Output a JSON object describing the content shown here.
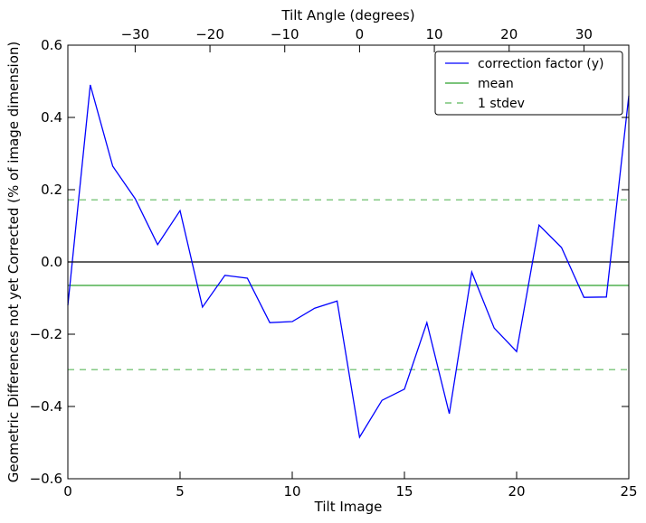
{
  "chart_data": {
    "type": "line",
    "xlabel": "Tilt Image",
    "ylabel": "Geometric Differences not yet Corrected (% of image dimension)",
    "top_xlabel": "Tilt Angle (degrees)",
    "xlim": [
      0,
      25
    ],
    "ylim": [
      -0.6,
      0.6
    ],
    "x_ticks": [
      0,
      5,
      10,
      15,
      20,
      25
    ],
    "y_ticks": [
      -0.6,
      -0.4,
      -0.2,
      0.0,
      0.2,
      0.4,
      0.6
    ],
    "y_tick_labels": [
      "−0.6",
      "−0.4",
      "−0.2",
      "0.0",
      "0.2",
      "0.4",
      "0.6"
    ],
    "top_ticks": [
      -30,
      -20,
      -10,
      0,
      10,
      20,
      30
    ],
    "top_tick_labels": [
      "−30",
      "−20",
      "−10",
      "0",
      "10",
      "20",
      "30"
    ],
    "top_axis_lim": [
      -39,
      36
    ],
    "grid": false,
    "legend_position": "top-right",
    "series": [
      {
        "name": "correction factor (y)",
        "color": "#0000ff",
        "style": "solid",
        "x": [
          0,
          1,
          2,
          3,
          4,
          5,
          6,
          7,
          8,
          9,
          10,
          11,
          12,
          13,
          14,
          15,
          16,
          17,
          18,
          19,
          20,
          21,
          22,
          23,
          24,
          25
        ],
        "values": [
          -0.12,
          0.49,
          0.265,
          0.175,
          0.048,
          0.142,
          -0.125,
          -0.037,
          -0.045,
          -0.168,
          -0.165,
          -0.128,
          -0.108,
          -0.485,
          -0.383,
          -0.352,
          -0.168,
          -0.42,
          -0.028,
          -0.183,
          -0.248,
          0.102,
          0.04,
          -0.098,
          -0.097,
          0.46
        ]
      },
      {
        "name": "mean",
        "color": "#2ca02c",
        "style": "solid",
        "constant": -0.065
      },
      {
        "name": "1 stdev",
        "color": "#5cb85c",
        "style": "dashed",
        "constants": [
          0.172,
          -0.298
        ]
      }
    ],
    "reference_line": {
      "y": 0.0,
      "color": "#000000"
    }
  }
}
